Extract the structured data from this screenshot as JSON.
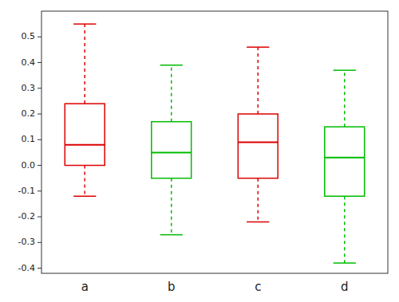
{
  "chart_data": {
    "type": "box",
    "categories": [
      "a",
      "b",
      "c",
      "d"
    ],
    "colors": [
      "#dd0000",
      "#00bb00",
      "#dd0000",
      "#00bb00"
    ],
    "whisker_low": [
      -0.12,
      -0.27,
      -0.22,
      -0.38
    ],
    "q1": [
      0.0,
      -0.05,
      -0.05,
      -0.12
    ],
    "median": [
      0.08,
      0.05,
      0.09,
      0.03
    ],
    "q3": [
      0.24,
      0.17,
      0.2,
      0.15
    ],
    "whisker_high": [
      0.55,
      0.39,
      0.46,
      0.37
    ],
    "ylim": [
      -0.42,
      0.6
    ],
    "yticks": [
      -0.4,
      -0.3,
      -0.2,
      -0.1,
      {
        "value": 0.0,
        "label": "0.0"
      },
      0.1,
      0.2,
      0.3,
      0.4,
      0.5
    ],
    "grid": false
  }
}
